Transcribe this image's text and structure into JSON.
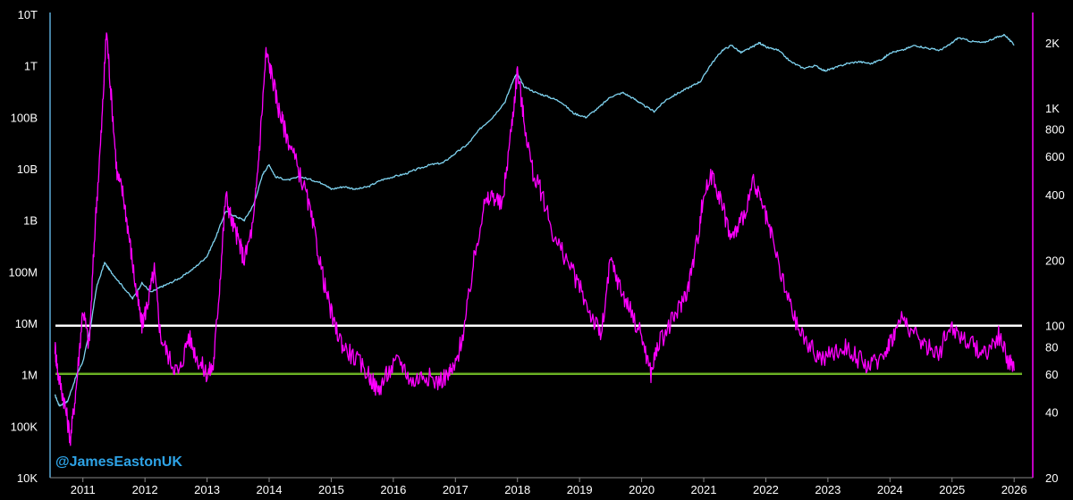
{
  "watermark": "@JamesEastonUK",
  "chart_data": {
    "type": "line",
    "title": "",
    "xlabel": "",
    "ylabel": "",
    "grid": false,
    "colors": {
      "background": "#000000",
      "left_series": "#7fd3f0",
      "right_series": "#ff00ff",
      "ref_white": "#ffffff",
      "ref_green": "#6ab023",
      "left_axis": "#5aa9d6",
      "right_axis": "#ff00ff",
      "watermark": "#2ea3e6"
    },
    "x_ticks": [
      "2011",
      "2012",
      "2013",
      "2014",
      "2015",
      "2016",
      "2017",
      "2018",
      "2019",
      "2020",
      "2021",
      "2022",
      "2023",
      "2024",
      "2025",
      "2026"
    ],
    "xlim": [
      2010.5,
      2026.3
    ],
    "left_axis": {
      "scale": "log",
      "ylim": [
        10000,
        10000000000000
      ],
      "ticks": [
        {
          "value": 10000,
          "label": "10K"
        },
        {
          "value": 100000,
          "label": "100K"
        },
        {
          "value": 1000000,
          "label": "1M"
        },
        {
          "value": 10000000,
          "label": "10M"
        },
        {
          "value": 100000000,
          "label": "100M"
        },
        {
          "value": 1000000000,
          "label": "1B"
        },
        {
          "value": 10000000000,
          "label": "10B"
        },
        {
          "value": 100000000000,
          "label": "100B"
        },
        {
          "value": 1000000000000,
          "label": "1T"
        },
        {
          "value": 10000000000000,
          "label": "10T"
        }
      ]
    },
    "right_axis": {
      "scale": "log",
      "ylim": [
        20,
        2700
      ],
      "ticks": [
        {
          "value": 20,
          "label": "20"
        },
        {
          "value": 40,
          "label": "40"
        },
        {
          "value": 60,
          "label": "60"
        },
        {
          "value": 80,
          "label": "80"
        },
        {
          "value": 100,
          "label": "100"
        },
        {
          "value": 200,
          "label": "200"
        },
        {
          "value": 400,
          "label": "400"
        },
        {
          "value": 600,
          "label": "600"
        },
        {
          "value": 800,
          "label": "800"
        },
        {
          "value": 1000,
          "label": "1K"
        },
        {
          "value": 2000,
          "label": "2K"
        }
      ]
    },
    "reference_lines": [
      {
        "axis": "right",
        "value": 100,
        "color": "#ffffff"
      },
      {
        "axis": "right",
        "value": 60,
        "color": "#6ab023"
      }
    ],
    "series": [
      {
        "axis": "left",
        "color": "#7fd3f0",
        "points": [
          [
            2010.55,
            400000
          ],
          [
            2010.62,
            250000
          ],
          [
            2010.75,
            300000
          ],
          [
            2010.9,
            1000000
          ],
          [
            2011.0,
            1800000
          ],
          [
            2011.12,
            8000000
          ],
          [
            2011.22,
            50000000
          ],
          [
            2011.35,
            150000000
          ],
          [
            2011.45,
            100000000
          ],
          [
            2011.6,
            60000000
          ],
          [
            2011.8,
            30000000
          ],
          [
            2011.95,
            60000000
          ],
          [
            2012.1,
            40000000
          ],
          [
            2012.25,
            50000000
          ],
          [
            2012.4,
            60000000
          ],
          [
            2012.6,
            80000000
          ],
          [
            2012.8,
            120000000
          ],
          [
            2013.0,
            200000000
          ],
          [
            2013.15,
            500000000
          ],
          [
            2013.3,
            1500000000
          ],
          [
            2013.45,
            1200000000
          ],
          [
            2013.6,
            1000000000
          ],
          [
            2013.75,
            2000000000
          ],
          [
            2013.9,
            8000000000
          ],
          [
            2014.0,
            12000000000
          ],
          [
            2014.1,
            7000000000
          ],
          [
            2014.3,
            6000000000
          ],
          [
            2014.5,
            7000000000
          ],
          [
            2014.7,
            6000000000
          ],
          [
            2014.9,
            5000000000
          ],
          [
            2015.0,
            4000000000
          ],
          [
            2015.2,
            4500000000
          ],
          [
            2015.4,
            4000000000
          ],
          [
            2015.6,
            4500000000
          ],
          [
            2015.8,
            6000000000
          ],
          [
            2016.0,
            7000000000
          ],
          [
            2016.2,
            8000000000
          ],
          [
            2016.4,
            10000000000
          ],
          [
            2016.6,
            12000000000
          ],
          [
            2016.8,
            13000000000
          ],
          [
            2017.0,
            20000000000
          ],
          [
            2017.2,
            30000000000
          ],
          [
            2017.4,
            60000000000
          ],
          [
            2017.6,
            100000000000
          ],
          [
            2017.8,
            200000000000
          ],
          [
            2017.95,
            600000000000
          ],
          [
            2018.0,
            700000000000
          ],
          [
            2018.1,
            400000000000
          ],
          [
            2018.3,
            300000000000
          ],
          [
            2018.5,
            250000000000
          ],
          [
            2018.7,
            200000000000
          ],
          [
            2018.9,
            120000000000
          ],
          [
            2019.1,
            100000000000
          ],
          [
            2019.3,
            150000000000
          ],
          [
            2019.5,
            250000000000
          ],
          [
            2019.7,
            300000000000
          ],
          [
            2019.9,
            220000000000
          ],
          [
            2020.0,
            180000000000
          ],
          [
            2020.2,
            130000000000
          ],
          [
            2020.4,
            220000000000
          ],
          [
            2020.6,
            300000000000
          ],
          [
            2020.8,
            400000000000
          ],
          [
            2020.95,
            500000000000
          ],
          [
            2021.1,
            1000000000000
          ],
          [
            2021.3,
            2000000000000
          ],
          [
            2021.45,
            2500000000000
          ],
          [
            2021.6,
            1800000000000
          ],
          [
            2021.75,
            2200000000000
          ],
          [
            2021.9,
            2800000000000
          ],
          [
            2022.0,
            2300000000000
          ],
          [
            2022.2,
            2000000000000
          ],
          [
            2022.4,
            1200000000000
          ],
          [
            2022.6,
            900000000000
          ],
          [
            2022.8,
            1000000000000
          ],
          [
            2022.95,
            800000000000
          ],
          [
            2023.1,
            900000000000
          ],
          [
            2023.3,
            1100000000000
          ],
          [
            2023.5,
            1200000000000
          ],
          [
            2023.7,
            1100000000000
          ],
          [
            2023.9,
            1400000000000
          ],
          [
            2024.0,
            1800000000000
          ],
          [
            2024.2,
            2000000000000
          ],
          [
            2024.4,
            2500000000000
          ],
          [
            2024.6,
            2200000000000
          ],
          [
            2024.8,
            2000000000000
          ],
          [
            2024.95,
            2500000000000
          ],
          [
            2025.1,
            3500000000000
          ],
          [
            2025.3,
            3000000000000
          ],
          [
            2025.5,
            2800000000000
          ],
          [
            2025.7,
            3500000000000
          ],
          [
            2025.85,
            4000000000000
          ],
          [
            2026.0,
            2500000000000
          ]
        ]
      },
      {
        "axis": "right",
        "color": "#ff00ff",
        "points": [
          [
            2010.55,
            80
          ],
          [
            2010.6,
            60
          ],
          [
            2010.7,
            45
          ],
          [
            2010.8,
            30
          ],
          [
            2010.9,
            55
          ],
          [
            2011.0,
            120
          ],
          [
            2011.1,
            80
          ],
          [
            2011.2,
            300
          ],
          [
            2011.3,
            800
          ],
          [
            2011.38,
            2300
          ],
          [
            2011.45,
            1200
          ],
          [
            2011.55,
            500
          ],
          [
            2011.65,
            400
          ],
          [
            2011.75,
            250
          ],
          [
            2011.85,
            150
          ],
          [
            2011.95,
            100
          ],
          [
            2012.05,
            130
          ],
          [
            2012.15,
            180
          ],
          [
            2012.25,
            90
          ],
          [
            2012.4,
            70
          ],
          [
            2012.55,
            60
          ],
          [
            2012.7,
            90
          ],
          [
            2012.85,
            70
          ],
          [
            2013.0,
            60
          ],
          [
            2013.1,
            65
          ],
          [
            2013.2,
            150
          ],
          [
            2013.3,
            400
          ],
          [
            2013.4,
            300
          ],
          [
            2013.5,
            250
          ],
          [
            2013.6,
            200
          ],
          [
            2013.75,
            300
          ],
          [
            2013.85,
            700
          ],
          [
            2013.95,
            1800
          ],
          [
            2014.05,
            1400
          ],
          [
            2014.15,
            1000
          ],
          [
            2014.25,
            800
          ],
          [
            2014.4,
            600
          ],
          [
            2014.6,
            400
          ],
          [
            2014.75,
            250
          ],
          [
            2014.9,
            150
          ],
          [
            2015.05,
            100
          ],
          [
            2015.2,
            80
          ],
          [
            2015.4,
            70
          ],
          [
            2015.6,
            60
          ],
          [
            2015.75,
            50
          ],
          [
            2015.9,
            60
          ],
          [
            2016.1,
            70
          ],
          [
            2016.3,
            55
          ],
          [
            2016.5,
            60
          ],
          [
            2016.7,
            55
          ],
          [
            2016.9,
            60
          ],
          [
            2017.0,
            65
          ],
          [
            2017.15,
            100
          ],
          [
            2017.3,
            200
          ],
          [
            2017.45,
            350
          ],
          [
            2017.6,
            400
          ],
          [
            2017.75,
            350
          ],
          [
            2017.9,
            800
          ],
          [
            2018.0,
            1500
          ],
          [
            2018.1,
            900
          ],
          [
            2018.25,
            500
          ],
          [
            2018.4,
            400
          ],
          [
            2018.6,
            250
          ],
          [
            2018.8,
            200
          ],
          [
            2019.0,
            150
          ],
          [
            2019.2,
            110
          ],
          [
            2019.35,
            90
          ],
          [
            2019.5,
            200
          ],
          [
            2019.65,
            150
          ],
          [
            2019.8,
            120
          ],
          [
            2020.0,
            90
          ],
          [
            2020.15,
            60
          ],
          [
            2020.25,
            80
          ],
          [
            2020.45,
            100
          ],
          [
            2020.6,
            120
          ],
          [
            2020.75,
            150
          ],
          [
            2020.9,
            250
          ],
          [
            2021.0,
            400
          ],
          [
            2021.15,
            500
          ],
          [
            2021.3,
            350
          ],
          [
            2021.45,
            250
          ],
          [
            2021.6,
            300
          ],
          [
            2021.8,
            450
          ],
          [
            2021.95,
            350
          ],
          [
            2022.1,
            250
          ],
          [
            2022.3,
            150
          ],
          [
            2022.5,
            100
          ],
          [
            2022.7,
            80
          ],
          [
            2022.9,
            70
          ],
          [
            2023.1,
            75
          ],
          [
            2023.3,
            80
          ],
          [
            2023.5,
            70
          ],
          [
            2023.7,
            65
          ],
          [
            2023.9,
            75
          ],
          [
            2024.05,
            90
          ],
          [
            2024.2,
            110
          ],
          [
            2024.4,
            90
          ],
          [
            2024.6,
            80
          ],
          [
            2024.8,
            75
          ],
          [
            2024.95,
            100
          ],
          [
            2025.15,
            90
          ],
          [
            2025.35,
            80
          ],
          [
            2025.55,
            75
          ],
          [
            2025.75,
            90
          ],
          [
            2025.9,
            70
          ],
          [
            2026.0,
            62
          ]
        ]
      }
    ]
  }
}
